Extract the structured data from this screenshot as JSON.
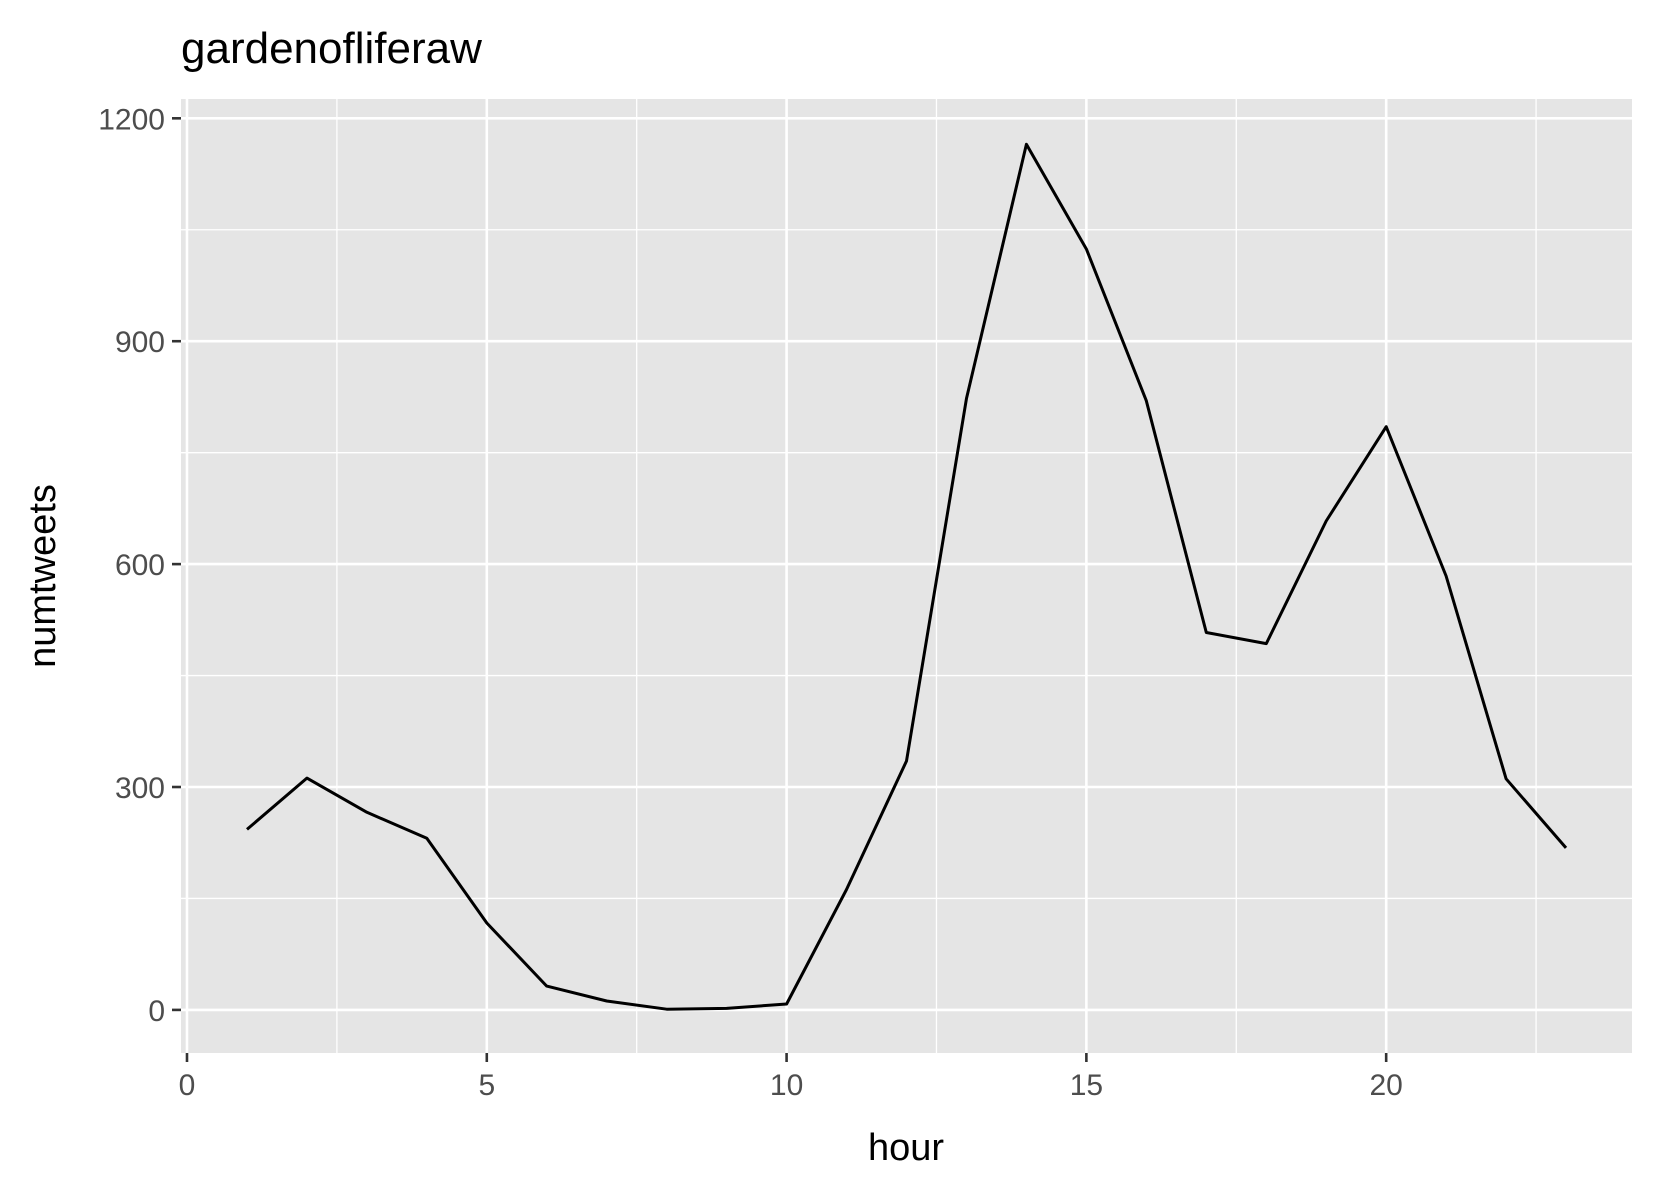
{
  "chart_data": {
    "type": "line",
    "title": "gardenofliferaw",
    "xlabel": "hour",
    "ylabel": "numtweets",
    "xlim": [
      -0.1,
      24.1
    ],
    "ylim": [
      -58,
      1226
    ],
    "x_ticks": [
      0,
      5,
      10,
      15,
      20
    ],
    "y_ticks": [
      0,
      300,
      600,
      900,
      1200
    ],
    "grid": true,
    "legend": "none",
    "colors": {
      "panel_background": "#e5e5e5",
      "grid": "#ffffff",
      "line": "#000000",
      "tick_text": "#4d4d4d"
    },
    "series": [
      {
        "x": [
          1,
          2,
          3,
          4,
          5,
          6,
          7,
          8,
          9,
          10,
          11,
          12,
          13,
          14,
          15,
          16,
          17,
          18,
          19,
          20,
          21,
          22,
          23
        ],
        "values": [
          243,
          312,
          266,
          231,
          117,
          32,
          12,
          1,
          2,
          8,
          162,
          335,
          823,
          1165,
          1024,
          820,
          508,
          493,
          658,
          785,
          584,
          311,
          218
        ]
      }
    ]
  }
}
